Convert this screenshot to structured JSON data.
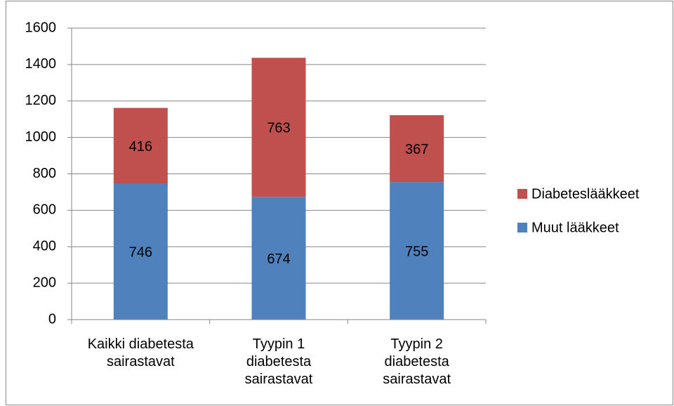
{
  "chart_data": {
    "type": "stacked_bar",
    "categories": [
      "Kaikki diabetesta\nsairastavat",
      "Tyypin 1\ndiabetesta\nsairastavat",
      "Tyypin 2\ndiabetesta\nsairastavat"
    ],
    "series": [
      {
        "name": "Muut lääkkeet",
        "color": "#4f81bd",
        "values": [
          746,
          674,
          755
        ]
      },
      {
        "name": "Diabeteslääkkeet",
        "color": "#c0504d",
        "values": [
          416,
          763,
          367
        ]
      }
    ],
    "ylim": [
      0,
      1600
    ],
    "yticks": [
      0,
      200,
      400,
      600,
      800,
      1000,
      1200,
      1400,
      1600
    ],
    "grid": true,
    "legend": "right"
  }
}
